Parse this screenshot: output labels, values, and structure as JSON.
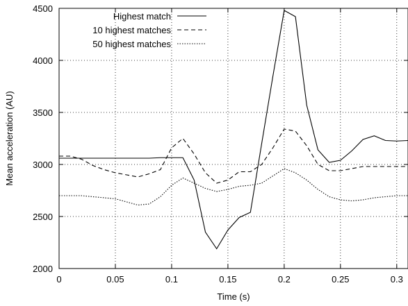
{
  "chart_data": {
    "type": "line",
    "xlabel": "Time (s)",
    "ylabel": "Mean acceleration (AU)",
    "xlim": [
      0,
      0.31
    ],
    "ylim": [
      2000,
      4500
    ],
    "xticks": [
      0,
      0.05,
      0.1,
      0.15,
      0.2,
      0.25,
      0.3
    ],
    "xtick_labels": [
      "0",
      "0.05",
      "0.1",
      "0.15",
      "0.2",
      "0.25",
      "0.3"
    ],
    "yticks": [
      2000,
      2500,
      3000,
      3500,
      4000,
      4500
    ],
    "ytick_labels": [
      "2000",
      "2500",
      "3000",
      "3500",
      "4000",
      "4500"
    ],
    "grid": true,
    "grid_style": "dotted",
    "legend_position": "top-left-inside",
    "series": [
      {
        "name": "Highest match",
        "style": "solid",
        "x": [
          0,
          0.01,
          0.02,
          0.03,
          0.04,
          0.05,
          0.06,
          0.07,
          0.08,
          0.09,
          0.1,
          0.11,
          0.12,
          0.13,
          0.14,
          0.15,
          0.16,
          0.17,
          0.18,
          0.19,
          0.2,
          0.21,
          0.22,
          0.23,
          0.24,
          0.25,
          0.26,
          0.27,
          0.28,
          0.29,
          0.3,
          0.31
        ],
        "y": [
          3060,
          3060,
          3060,
          3060,
          3060,
          3060,
          3060,
          3060,
          3060,
          3065,
          3065,
          3065,
          2850,
          2350,
          2190,
          2370,
          2490,
          2540,
          3200,
          3850,
          4480,
          4420,
          3570,
          3140,
          3020,
          3040,
          3130,
          3240,
          3275,
          3230,
          3225,
          3230
        ]
      },
      {
        "name": "10 highest matches",
        "style": "dashed",
        "x": [
          0,
          0.01,
          0.02,
          0.03,
          0.04,
          0.05,
          0.06,
          0.07,
          0.08,
          0.09,
          0.1,
          0.11,
          0.12,
          0.13,
          0.14,
          0.15,
          0.16,
          0.17,
          0.18,
          0.19,
          0.2,
          0.21,
          0.22,
          0.23,
          0.24,
          0.25,
          0.26,
          0.27,
          0.28,
          0.29,
          0.3,
          0.31
        ],
        "y": [
          3080,
          3080,
          3050,
          2990,
          2950,
          2920,
          2900,
          2880,
          2910,
          2950,
          3160,
          3250,
          3100,
          2920,
          2820,
          2850,
          2930,
          2930,
          3000,
          3160,
          3340,
          3320,
          3180,
          3000,
          2940,
          2940,
          2960,
          2980,
          2980,
          2980,
          2980,
          2980
        ]
      },
      {
        "name": "50 highest matches",
        "style": "dotted",
        "x": [
          0,
          0.01,
          0.02,
          0.03,
          0.04,
          0.05,
          0.06,
          0.07,
          0.08,
          0.09,
          0.1,
          0.11,
          0.12,
          0.13,
          0.14,
          0.15,
          0.16,
          0.17,
          0.18,
          0.19,
          0.2,
          0.21,
          0.22,
          0.23,
          0.24,
          0.25,
          0.26,
          0.27,
          0.28,
          0.29,
          0.3,
          0.31
        ],
        "y": [
          2700,
          2700,
          2700,
          2690,
          2680,
          2670,
          2640,
          2610,
          2620,
          2690,
          2800,
          2870,
          2820,
          2770,
          2740,
          2760,
          2790,
          2800,
          2820,
          2890,
          2960,
          2920,
          2850,
          2760,
          2690,
          2660,
          2650,
          2660,
          2680,
          2690,
          2700,
          2700
        ]
      }
    ]
  }
}
